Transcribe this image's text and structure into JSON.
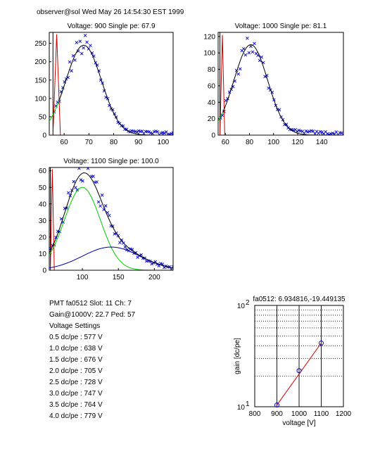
{
  "header": "observer@sol Wed May 26 14:54:30 EST 1999",
  "info": {
    "line1": "PMT fa0512 Slot: 11 Ch: 7",
    "line2": "Gain@1000V: 22.7 Ped: 57",
    "line3": "Voltage Settings",
    "settings": [
      "0.5 dc/pe : 577 V",
      "1.0 dc/pe : 638 V",
      "1.5 dc/pe : 676 V",
      "2.0 dc/pe : 705 V",
      "2.5 dc/pe : 728 V",
      "3.0 dc/pe : 747 V",
      "3.5 dc/pe : 764 V",
      "4.0 dc/pe : 779 V"
    ]
  },
  "colors": {
    "data": "#0000cc",
    "fit": "#000000",
    "single": "#00cc00",
    "double": "#0000aa",
    "ped": "#cc0000",
    "gain": "#cc0000"
  },
  "chart_data": [
    {
      "type": "scatter",
      "title": "Voltage: 900 Single pe: 67.9",
      "xlim": [
        54,
        104
      ],
      "ylim": [
        0,
        280
      ],
      "xticks": [
        60,
        70,
        80,
        90,
        100
      ],
      "yticks": [
        0,
        50,
        100,
        150,
        200,
        250
      ],
      "peak": 67.9,
      "amp": 245,
      "sigma": 8.2,
      "spe_amp": 245,
      "spe_sigma": 7.2,
      "dpe_amp": 0,
      "dpe_sigma": 10,
      "green_to": 60,
      "red_x": [
        55.5,
        58.5
      ],
      "red_top": 275
    },
    {
      "type": "scatter",
      "title": "Voltage: 1000 Single pe: 81.1",
      "xlim": [
        54,
        158
      ],
      "ylim": [
        0,
        125
      ],
      "xticks": [
        60,
        80,
        100,
        120,
        140
      ],
      "yticks": [
        0,
        20,
        40,
        60,
        80,
        100,
        120
      ],
      "peak": 81.1,
      "amp": 110,
      "sigma": 15,
      "spe_amp": 110,
      "spe_sigma": 14,
      "dpe_amp": 0,
      "dpe_sigma": 20,
      "green_to": 60,
      "red_x": [
        55.5,
        59.5
      ],
      "red_top": 122
    },
    {
      "type": "scatter",
      "title": "Voltage: 1100 Single pe: 100.0",
      "xlim": [
        54,
        226
      ],
      "ylim": [
        0,
        62
      ],
      "xticks": [
        100,
        150,
        200
      ],
      "yticks": [
        0,
        10,
        20,
        30,
        40,
        50,
        60
      ],
      "peak": 100.0,
      "amp": 59,
      "sigma": 27,
      "spe_amp": 50,
      "spe_sigma": 25,
      "dpe_amp": 14,
      "dpe_sigma": 40,
      "green_to": 200,
      "red_x": [
        55.5,
        61
      ],
      "red_top": 61
    },
    {
      "type": "line",
      "title": "fa0512: 6.934816,-19.449135",
      "xlabel": "voltage [V]",
      "ylabel": "gain [dc/pe]",
      "xlim": [
        800,
        1200
      ],
      "ylim": [
        10,
        100
      ],
      "log_y": true,
      "xticks": [
        800,
        900,
        1000,
        1100,
        1200
      ],
      "ytick_labels": [
        {
          "base": "10",
          "exp": "1"
        },
        {
          "base": "10",
          "exp": "2"
        }
      ],
      "x": [
        900,
        1000,
        1100
      ],
      "y": [
        10.4,
        22.7,
        42.5
      ],
      "grid": true
    }
  ]
}
